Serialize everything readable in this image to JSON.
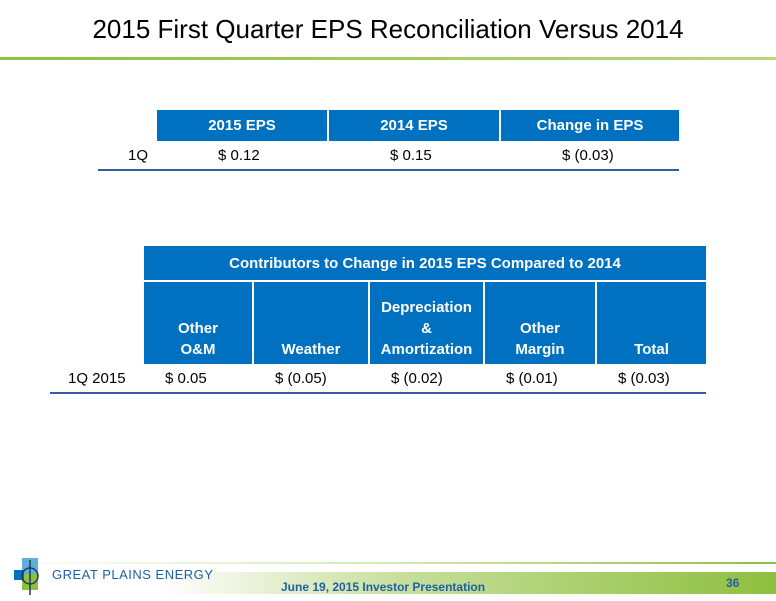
{
  "slide": {
    "title": "2015 First Quarter EPS Reconciliation Versus 2014"
  },
  "eps_table": {
    "headers": [
      "2015 EPS",
      "2014 EPS",
      "Change in EPS"
    ],
    "rows": [
      {
        "label": "1Q",
        "cells": [
          "$  0.12",
          "$ 0.15",
          "$  (0.03)"
        ]
      }
    ]
  },
  "contributors_table": {
    "title": "Contributors to Change in 2015 EPS Compared to 2014",
    "headers": [
      [
        "Other",
        "O&M"
      ],
      [
        "Weather"
      ],
      [
        "Depreciation",
        "&",
        "Amortization"
      ],
      [
        "Other",
        "Margin"
      ],
      [
        "Total"
      ]
    ],
    "rows": [
      {
        "label": "1Q 2015",
        "cells": [
          "$  0.05",
          "$  (0.05)",
          "$  (0.02)",
          "$  (0.01)",
          "$  (0.03)"
        ]
      }
    ]
  },
  "footer": {
    "logo_text": "GREAT PLAINS ENERGY",
    "presentation": "June 19, 2015 Investor Presentation",
    "page_number": "36"
  },
  "colors": {
    "header_blue": "#0070c0",
    "accent_green": "#8ebf3f",
    "footer_text_blue": "#1f5fa8"
  }
}
